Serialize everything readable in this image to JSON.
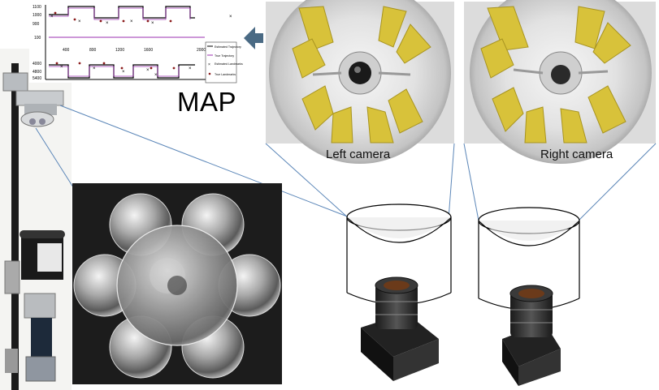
{
  "map": {
    "title": "MAP",
    "y_ticks_top": [
      "1100",
      "1000",
      "900"
    ],
    "y_ticks_bottom": [
      "4000",
      "4800",
      "5400"
    ],
    "y_tick_mid": "100",
    "x_ticks": [
      "400",
      "800",
      "1200",
      "1600",
      "2000"
    ],
    "legend": [
      {
        "label": "Estimated Trajectory",
        "color": "#000000"
      },
      {
        "label": "True Trajectory",
        "color": "#9b30b0"
      },
      {
        "label": "Estimated Landmarks",
        "color": "#000000"
      },
      {
        "label": "True Landmarks",
        "color": "#9b30b0"
      }
    ]
  },
  "labels": {
    "left_camera": "Left camera",
    "right_camera": "Right camera"
  },
  "colors": {
    "arrow": "#4a6a84",
    "connector": "#5b86b8",
    "mirror_panel_bg": "#1c1c1c"
  }
}
